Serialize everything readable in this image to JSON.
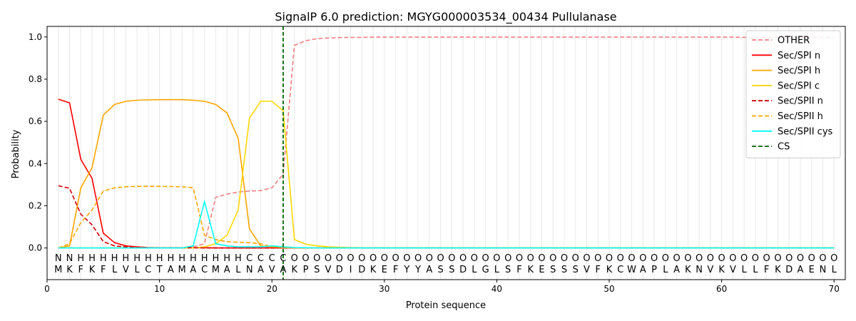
{
  "chart_data": {
    "type": "line",
    "title": "SignalP 6.0 prediction: MGYG000003534_00434 Pullulanase",
    "xlabel": "Protein sequence",
    "ylabel": "Probability",
    "xlim": [
      0,
      71
    ],
    "ylim": [
      -0.15,
      1.05
    ],
    "xticks": [
      0,
      10,
      20,
      30,
      40,
      50,
      60,
      70
    ],
    "yticks": [
      0.0,
      0.2,
      0.4,
      0.6,
      0.8,
      1.0
    ],
    "grid": "vertical lines at each residue",
    "legend_position": "top-right",
    "cs_position": 21,
    "sequence": [
      "M",
      "K",
      "F",
      "K",
      "F",
      "L",
      "V",
      "L",
      "C",
      "T",
      "A",
      "M",
      "A",
      "C",
      "M",
      "A",
      "L",
      "N",
      "A",
      "V",
      "A",
      "K",
      "P",
      "S",
      "V",
      "D",
      "I",
      "D",
      "K",
      "E",
      "F",
      "Y",
      "Y",
      "A",
      "S",
      "S",
      "D",
      "L",
      "G",
      "L",
      "S",
      "F",
      "K",
      "E",
      "S",
      "S",
      "S",
      "V",
      "F",
      "K",
      "C",
      "W",
      "A",
      "P",
      "L",
      "A",
      "K",
      "N",
      "V",
      "K",
      "V",
      "L",
      "L",
      "F",
      "K",
      "D",
      "A",
      "E",
      "N",
      "L"
    ],
    "region_labels": [
      "N",
      "N",
      "H",
      "H",
      "H",
      "H",
      "H",
      "H",
      "H",
      "H",
      "H",
      "H",
      "H",
      "H",
      "H",
      "H",
      "H",
      "C",
      "C",
      "C",
      "C",
      "O",
      "O",
      "O",
      "O",
      "O",
      "O",
      "O",
      "O",
      "O",
      "O",
      "O",
      "O",
      "O",
      "O",
      "O",
      "O",
      "O",
      "O",
      "O",
      "O",
      "O",
      "O",
      "O",
      "O",
      "O",
      "O",
      "O",
      "O",
      "O",
      "O",
      "O",
      "O",
      "O",
      "O",
      "O",
      "O",
      "O",
      "O",
      "O",
      "O",
      "O",
      "O",
      "O",
      "O",
      "O",
      "O",
      "O",
      "O",
      "O"
    ],
    "region_colors": {
      "N": "#ff0000",
      "H": "#ffa500",
      "C": "#ffd700",
      "O": "#808080"
    },
    "series": [
      {
        "name": "OTHER",
        "color": "#f08080",
        "dash": "dashed",
        "values": [
          0.0,
          0.0,
          0.0,
          0.0,
          0.0,
          0.0,
          0.0,
          0.0,
          0.0,
          0.0,
          0.0,
          0.0,
          0.005,
          0.02,
          0.24,
          0.255,
          0.265,
          0.27,
          0.272,
          0.285,
          0.35,
          0.96,
          0.982,
          0.992,
          0.995,
          0.997,
          0.998,
          0.998,
          0.999,
          0.999,
          0.999,
          0.999,
          0.999,
          0.999,
          0.999,
          0.999,
          0.999,
          0.999,
          0.999,
          0.999,
          0.999,
          0.999,
          0.999,
          0.999,
          0.999,
          0.999,
          0.999,
          0.999,
          0.999,
          0.999,
          0.999,
          0.999,
          0.999,
          0.999,
          0.999,
          0.999,
          0.999,
          0.999,
          0.999,
          0.999,
          0.999,
          0.998,
          0.998,
          0.998,
          0.998,
          0.998,
          0.998,
          0.998,
          0.998,
          0.998
        ]
      },
      {
        "name": "Sec/SPI n",
        "color": "#ff0000",
        "dash": "solid",
        "values": [
          0.705,
          0.688,
          0.42,
          0.33,
          0.07,
          0.025,
          0.01,
          0.005,
          0.002,
          0.001,
          0.001,
          0.001,
          0.001,
          0.001,
          0.0,
          0.0,
          0.0,
          0.0,
          0.0,
          0.0,
          0.0,
          0.0,
          0.0,
          0.0,
          0.0,
          0.0,
          0.0,
          0.0,
          0.0,
          0.0,
          0.0,
          0.0,
          0.0,
          0.0,
          0.0,
          0.0,
          0.0,
          0.0,
          0.0,
          0.0,
          0.0,
          0.0,
          0.0,
          0.0,
          0.0,
          0.0,
          0.0,
          0.0,
          0.0,
          0.0,
          0.0,
          0.0,
          0.0,
          0.0,
          0.0,
          0.0,
          0.0,
          0.0,
          0.0,
          0.0,
          0.0,
          0.0,
          0.0,
          0.0,
          0.0,
          0.0,
          0.0,
          0.0,
          0.0,
          0.0
        ]
      },
      {
        "name": "Sec/SPI h",
        "color": "#ffa500",
        "dash": "solid",
        "values": [
          0.0,
          0.01,
          0.285,
          0.38,
          0.63,
          0.68,
          0.695,
          0.7,
          0.702,
          0.703,
          0.703,
          0.703,
          0.7,
          0.695,
          0.68,
          0.64,
          0.52,
          0.09,
          0.01,
          0.005,
          0.003,
          0.0,
          0.0,
          0.0,
          0.0,
          0.0,
          0.0,
          0.0,
          0.0,
          0.0,
          0.0,
          0.0,
          0.0,
          0.0,
          0.0,
          0.0,
          0.0,
          0.0,
          0.0,
          0.0,
          0.0,
          0.0,
          0.0,
          0.0,
          0.0,
          0.0,
          0.0,
          0.0,
          0.0,
          0.0,
          0.0,
          0.0,
          0.0,
          0.0,
          0.0,
          0.0,
          0.0,
          0.0,
          0.0,
          0.0,
          0.0,
          0.0,
          0.0,
          0.0,
          0.0,
          0.0,
          0.0,
          0.0,
          0.0,
          0.0
        ]
      },
      {
        "name": "Sec/SPI c",
        "color": "#ffd700",
        "dash": "solid",
        "values": [
          0.0,
          0.0,
          0.0,
          0.0,
          0.0,
          0.0,
          0.0,
          0.0,
          0.0,
          0.0,
          0.0,
          0.0,
          0.0,
          0.005,
          0.02,
          0.06,
          0.18,
          0.615,
          0.695,
          0.695,
          0.65,
          0.04,
          0.018,
          0.01,
          0.005,
          0.003,
          0.002,
          0.001,
          0.001,
          0.0,
          0.0,
          0.0,
          0.0,
          0.0,
          0.0,
          0.0,
          0.0,
          0.0,
          0.0,
          0.0,
          0.0,
          0.0,
          0.0,
          0.0,
          0.0,
          0.0,
          0.0,
          0.0,
          0.0,
          0.0,
          0.0,
          0.0,
          0.0,
          0.0,
          0.0,
          0.0,
          0.0,
          0.0,
          0.0,
          0.0,
          0.0,
          0.0,
          0.0,
          0.0,
          0.0,
          0.0,
          0.0,
          0.0,
          0.0,
          0.0
        ]
      },
      {
        "name": "Sec/SPII n",
        "color": "#cc0000",
        "dash": "dashed",
        "values": [
          0.295,
          0.283,
          0.16,
          0.11,
          0.03,
          0.01,
          0.005,
          0.002,
          0.001,
          0.001,
          0.001,
          0.001,
          0.001,
          0.0,
          0.0,
          0.0,
          0.0,
          0.0,
          0.0,
          0.0,
          0.0,
          0.0,
          0.0,
          0.0,
          0.0,
          0.0,
          0.0,
          0.0,
          0.0,
          0.0,
          0.0,
          0.0,
          0.0,
          0.0,
          0.0,
          0.0,
          0.0,
          0.0,
          0.0,
          0.0,
          0.0,
          0.0,
          0.0,
          0.0,
          0.0,
          0.0,
          0.0,
          0.0,
          0.0,
          0.0,
          0.0,
          0.0,
          0.0,
          0.0,
          0.0,
          0.0,
          0.0,
          0.0,
          0.0,
          0.0,
          0.0,
          0.0,
          0.0,
          0.0,
          0.0,
          0.0,
          0.0,
          0.0,
          0.0,
          0.0
        ]
      },
      {
        "name": "Sec/SPII h",
        "color": "#ffa500",
        "dash": "dashed",
        "values": [
          0.0,
          0.02,
          0.12,
          0.18,
          0.27,
          0.285,
          0.29,
          0.292,
          0.292,
          0.292,
          0.291,
          0.29,
          0.285,
          0.06,
          0.04,
          0.03,
          0.027,
          0.025,
          0.02,
          0.005,
          0.002,
          0.0,
          0.0,
          0.0,
          0.0,
          0.0,
          0.0,
          0.0,
          0.0,
          0.0,
          0.0,
          0.0,
          0.0,
          0.0,
          0.0,
          0.0,
          0.0,
          0.0,
          0.0,
          0.0,
          0.0,
          0.0,
          0.0,
          0.0,
          0.0,
          0.0,
          0.0,
          0.0,
          0.0,
          0.0,
          0.0,
          0.0,
          0.0,
          0.0,
          0.0,
          0.0,
          0.0,
          0.0,
          0.0,
          0.0,
          0.0,
          0.0,
          0.0,
          0.0,
          0.0,
          0.0,
          0.0,
          0.0,
          0.0,
          0.0
        ]
      },
      {
        "name": "Sec/SPII cys",
        "color": "#00ffff",
        "dash": "solid",
        "values": [
          0.0,
          0.0,
          0.0,
          0.0,
          0.0,
          0.0,
          0.0,
          0.0,
          0.0,
          0.0,
          0.0,
          0.0,
          0.01,
          0.22,
          0.02,
          0.01,
          0.005,
          0.005,
          0.005,
          0.01,
          0.005,
          0.002,
          0.001,
          0.0,
          0.0,
          0.0,
          0.0,
          0.0,
          0.0,
          0.0,
          0.0,
          0.0,
          0.0,
          0.0,
          0.0,
          0.0,
          0.0,
          0.0,
          0.0,
          0.0,
          0.0,
          0.0,
          0.0,
          0.0,
          0.0,
          0.0,
          0.0,
          0.0,
          0.0,
          0.0,
          0.0,
          0.0,
          0.0,
          0.0,
          0.0,
          0.0,
          0.0,
          0.0,
          0.0,
          0.0,
          0.0,
          0.0,
          0.0,
          0.0,
          0.0,
          0.0,
          0.0,
          0.0,
          0.0,
          0.0
        ]
      }
    ],
    "cs_marker": {
      "name": "CS",
      "color": "#006400",
      "dash": "dashed"
    }
  }
}
